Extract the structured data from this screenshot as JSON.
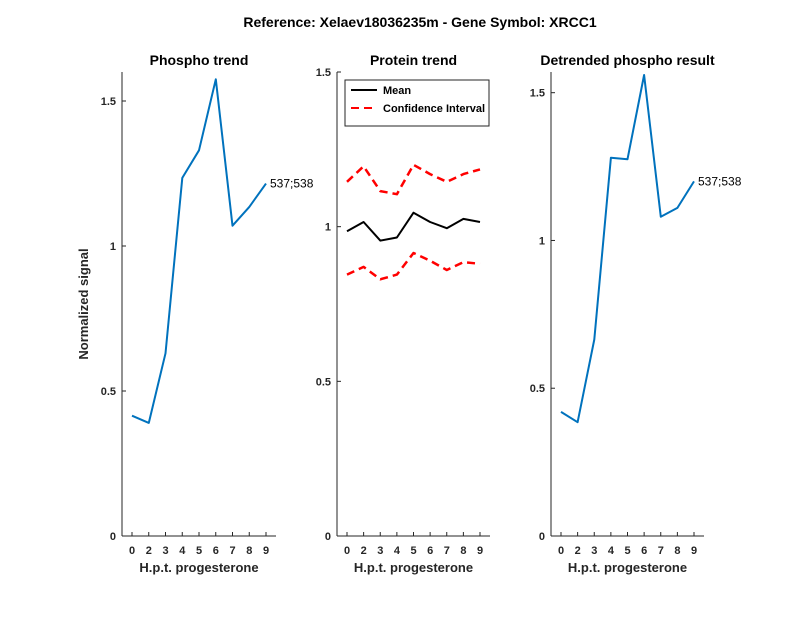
{
  "figure_title": "Reference:  Xelaev18036235m - Gene Symbol:  XRCC1",
  "chart_data": [
    {
      "type": "line",
      "title": "Phospho trend",
      "xlabel": "H.p.t. progesterone",
      "ylabel": "Normalized signal",
      "categories": [
        "0",
        "2",
        "3",
        "4",
        "5",
        "6",
        "7",
        "8",
        "9"
      ],
      "ylim": [
        0,
        1.6
      ],
      "yticks": [
        0,
        0.5,
        1,
        1.5
      ],
      "ytick_labels": [
        "0",
        "0.5",
        "1",
        "1.5"
      ],
      "series": [
        {
          "color": "#0072BD",
          "dash": "solid",
          "values": [
            0.415,
            0.39,
            0.63,
            1.235,
            1.33,
            1.575,
            1.07,
            1.135,
            1.215
          ]
        }
      ],
      "annotation": "537;538"
    },
    {
      "type": "line",
      "title": "Protein trend",
      "xlabel": "H.p.t. progesterone",
      "ylabel": "",
      "categories": [
        "0",
        "2",
        "3",
        "4",
        "5",
        "6",
        "7",
        "8",
        "9"
      ],
      "ylim": [
        0,
        1.5
      ],
      "yticks": [
        0,
        0.5,
        1,
        1.5
      ],
      "ytick_labels": [
        "0",
        "0.5",
        "1",
        "1.5"
      ],
      "legend_position": "top-left",
      "series": [
        {
          "name": "Mean",
          "color": "#000000",
          "dash": "solid",
          "values": [
            0.985,
            1.015,
            0.955,
            0.965,
            1.045,
            1.015,
            0.995,
            1.025,
            1.015
          ]
        },
        {
          "name": "Confidence Interval",
          "color": "#FF0000",
          "dash": "dashed",
          "values": [
            1.145,
            1.195,
            1.115,
            1.105,
            1.2,
            1.17,
            1.145,
            1.17,
            1.185
          ]
        },
        {
          "name": "",
          "color": "#FF0000",
          "dash": "dashed",
          "values": [
            0.845,
            0.87,
            0.83,
            0.845,
            0.915,
            0.89,
            0.86,
            0.885,
            0.88
          ]
        }
      ]
    },
    {
      "type": "line",
      "title": "Detrended phospho result",
      "xlabel": "H.p.t. progesterone",
      "ylabel": "",
      "categories": [
        "0",
        "2",
        "3",
        "4",
        "5",
        "6",
        "7",
        "8",
        "9"
      ],
      "ylim": [
        0,
        1.57
      ],
      "yticks": [
        0,
        0.5,
        1,
        1.5
      ],
      "ytick_labels": [
        "0",
        "0.5",
        "1",
        "1.5"
      ],
      "series": [
        {
          "color": "#0072BD",
          "dash": "solid",
          "values": [
            0.42,
            0.385,
            0.665,
            1.28,
            1.275,
            1.56,
            1.08,
            1.11,
            1.2
          ]
        }
      ],
      "annotation": "537;538"
    }
  ]
}
